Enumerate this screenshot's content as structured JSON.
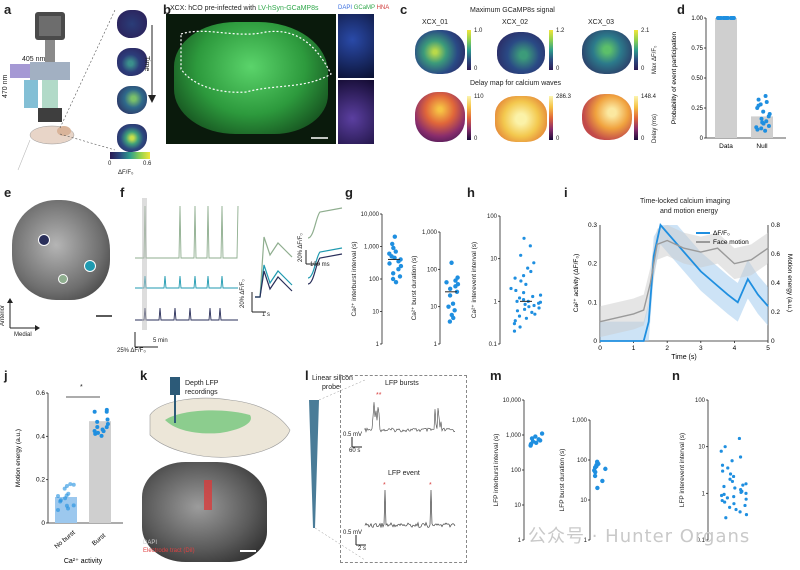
{
  "panel_labels": [
    "a",
    "b",
    "c",
    "d",
    "e",
    "f",
    "g",
    "h",
    "i",
    "j",
    "k",
    "l",
    "m",
    "n"
  ],
  "panel_a": {
    "wavelength_top": "405 nm",
    "wavelength_side": "470 nm",
    "time_label": "Time",
    "colorbar_min": "0",
    "colorbar_max": "0.6",
    "colorbar_label": "ΔF/F₀"
  },
  "panel_b": {
    "caption_prefix": "XCX: hCO pre-infected with ",
    "caption_virus": "LV-hSyn-GCaMP8s",
    "inset_dapi": "DAPI",
    "inset_gcamp": "GCaMP",
    "inset_hna": "HNA"
  },
  "panel_c": {
    "title_top": "Maximum GCaMP8s signal",
    "title_bottom": "Delay map for calcium waves",
    "samples": [
      {
        "name": "XCX_01",
        "max_top": "1.0",
        "max_bottom": "110"
      },
      {
        "name": "XCX_02",
        "max_top": "1.2",
        "max_bottom": "286.3"
      },
      {
        "name": "XCX_03",
        "max_top": "2.1",
        "max_bottom": "148.4"
      }
    ],
    "zero": "0",
    "cbar_label_top": "Max ΔF/F₀",
    "cbar_label_bottom": "Delay (ms)"
  },
  "panel_f": {
    "scale_y": "25% ΔF/F₀",
    "scale_x": "5 min",
    "scale_y2": "20% ΔF/F₀",
    "scale_x2": "1 s",
    "scale_y3": "20% ΔF/F₀",
    "scale_x3": "100 ms",
    "colors": [
      "#8fae8f",
      "#1f9ab0",
      "#2a2f5a"
    ]
  },
  "panel_i": {
    "title_line1": "Time-locked calcium imaging",
    "title_line2": "and motion energy",
    "legend_ca": "ΔF/F₀",
    "legend_motion": "Face motion"
  },
  "panel_j": {
    "significance": "*"
  },
  "panel_k": {
    "probe_label_line1": "Depth LFP",
    "probe_label_line2": "recordings",
    "legend_dapi": "DAPI",
    "legend_dil": "Electrode tract (DiI)"
  },
  "panel_l": {
    "probe_line1": "Linear silicon",
    "probe_line2": "probe",
    "bursts_title": "LFP bursts",
    "event_title": "LFP event",
    "scale_top_y": "0.5 mV",
    "scale_top_x": "60 s",
    "scale_bot_y": "0.5 mV",
    "scale_bot_x": "2 s"
  },
  "panel_e": {
    "anterior": "Anterior",
    "medial": "Medial"
  },
  "watermark": "公众号 · Hunter Organs",
  "chart_data": [
    {
      "panel": "d",
      "type": "bar",
      "categories": [
        "Data",
        "Null"
      ],
      "values": [
        1.0,
        0.18
      ],
      "ylabel": "Probability of event participation",
      "ylim": [
        0,
        1.0
      ],
      "yticks": [
        "0",
        "0.25",
        "0.50",
        "0.75",
        "1.00"
      ],
      "points": {
        "Data": [
          1,
          1,
          1,
          1,
          1,
          1,
          1,
          1,
          1,
          1,
          1,
          1,
          1,
          1,
          1,
          1,
          1,
          1
        ],
        "Null": [
          0.35,
          0.32,
          0.28,
          0.25,
          0.22,
          0.2,
          0.18,
          0.16,
          0.14,
          0.12,
          0.1,
          0.08,
          0.07,
          0.06,
          0.3,
          0.27,
          0.13,
          0.09
        ]
      }
    },
    {
      "panel": "g-left",
      "type": "scatter",
      "ylabel": "Ca²⁺ interburst interval (s)",
      "yscale": "log",
      "ylim": [
        1,
        10000
      ],
      "yticks": [
        "1",
        "10",
        "100",
        "1,000",
        "10,000"
      ],
      "values": [
        2000,
        1200,
        900,
        700,
        600,
        500,
        450,
        400,
        350,
        300,
        250,
        200,
        150,
        120,
        100,
        80
      ]
    },
    {
      "panel": "g-right",
      "type": "scatter",
      "ylabel": "Ca²⁺ burst duration (s)",
      "yscale": "log",
      "ylim": [
        1,
        1000
      ],
      "yticks": [
        "1",
        "10",
        "100",
        "1,000"
      ],
      "values": [
        150,
        60,
        50,
        45,
        40,
        35,
        30,
        25,
        20,
        12,
        10,
        8,
        6,
        5,
        4
      ]
    },
    {
      "panel": "h",
      "type": "scatter",
      "ylabel": "Ca²⁺ interevent interval (s)",
      "yscale": "log",
      "ylim": [
        0.1,
        100
      ],
      "yticks": [
        "0.1",
        "1",
        "10",
        "100"
      ],
      "values": [
        30,
        20,
        12,
        8,
        6,
        5,
        4,
        3.5,
        3,
        2.5,
        2,
        1.8,
        1.6,
        1.4,
        1.3,
        1.2,
        1.1,
        1.0,
        1.0,
        0.95,
        0.9,
        0.85,
        0.8,
        0.75,
        0.7,
        0.65,
        0.6,
        0.55,
        0.5,
        0.45,
        0.4,
        0.35,
        0.3,
        0.25,
        0.2
      ]
    },
    {
      "panel": "i",
      "type": "line",
      "xlabel": "Time (s)",
      "ylabel": "Ca²⁺ activity (ΔF/F₀)",
      "y2label": "Motion energy (a.u.)",
      "xlim": [
        0,
        5
      ],
      "ylim": [
        0,
        0.3
      ],
      "y2lim": [
        0,
        0.8
      ],
      "xticks": [
        "0",
        "1",
        "2",
        "3",
        "4",
        "5"
      ],
      "yticks": [
        "0",
        "0.1",
        "0.2",
        "0.3"
      ],
      "y2ticks": [
        "0",
        "0.2",
        "0.4",
        "0.6",
        "0.8"
      ],
      "series": [
        {
          "name": "ΔF/F₀",
          "color": "#1f8fe0",
          "x": [
            0,
            0.5,
            1,
            1.3,
            1.45,
            1.6,
            1.8,
            2.0,
            2.3,
            2.6,
            3.0,
            3.4,
            3.8,
            4.1,
            4.4,
            4.7,
            5.0
          ],
          "y": [
            0.0,
            0.0,
            0.0,
            0.0,
            0.05,
            0.22,
            0.3,
            0.28,
            0.25,
            0.22,
            0.18,
            0.15,
            0.12,
            0.1,
            0.16,
            0.12,
            0.09
          ]
        },
        {
          "name": "Face motion",
          "color": "#9a9a9a",
          "x": [
            0,
            0.5,
            1,
            1.3,
            1.5,
            1.7,
            2.0,
            2.5,
            3.0,
            3.5,
            4.0,
            4.5,
            5.0
          ],
          "y": [
            0.05,
            0.06,
            0.07,
            0.08,
            0.15,
            0.25,
            0.26,
            0.24,
            0.23,
            0.24,
            0.2,
            0.21,
            0.24
          ]
        }
      ]
    },
    {
      "panel": "j",
      "type": "bar",
      "categories": [
        "No burst",
        "Burst"
      ],
      "xlabel": "Ca²⁺ activity",
      "ylabel": "Motion energy (a.u.)",
      "values": [
        0.12,
        0.47
      ],
      "ylim": [
        0,
        0.6
      ],
      "yticks": [
        "0",
        "0.2",
        "0.4",
        "0.6"
      ]
    },
    {
      "panel": "m-left",
      "type": "scatter",
      "ylabel": "LFP interburst interval (s)",
      "yscale": "log",
      "ylim": [
        1,
        10000
      ],
      "yticks": [
        "1",
        "10",
        "100",
        "1,000",
        "10,000"
      ],
      "values": [
        1100,
        900,
        800,
        750,
        700,
        650,
        600,
        550,
        500
      ]
    },
    {
      "panel": "m-right",
      "type": "scatter",
      "ylabel": "LFP burst duration (s)",
      "yscale": "log",
      "ylim": [
        1,
        1000
      ],
      "yticks": [
        "1",
        "10",
        "100",
        "1,000"
      ],
      "values": [
        90,
        80,
        75,
        70,
        65,
        60,
        55,
        50,
        40,
        30,
        20
      ]
    },
    {
      "panel": "n",
      "type": "scatter",
      "ylabel": "LFP interevent interval (s)",
      "yscale": "log",
      "ylim": [
        0.1,
        100
      ],
      "yticks": [
        "0.1",
        "1",
        "10",
        "100"
      ],
      "values": [
        15,
        10,
        8,
        6,
        5,
        4,
        3.5,
        3,
        2.6,
        2.3,
        2,
        1.8,
        1.6,
        1.5,
        1.4,
        1.3,
        1.2,
        1.1,
        1.05,
        1.0,
        0.95,
        0.9,
        0.85,
        0.8,
        0.75,
        0.7,
        0.65,
        0.6,
        0.55,
        0.5,
        0.45,
        0.4,
        0.35,
        0.3
      ]
    }
  ]
}
